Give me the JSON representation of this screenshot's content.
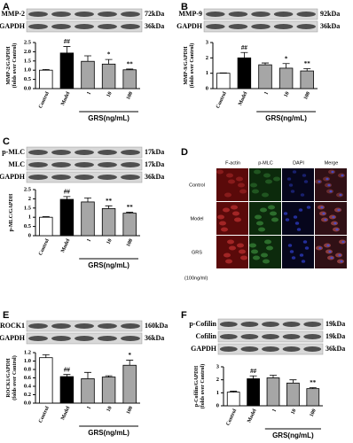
{
  "chart_data": [
    {
      "type": "bar",
      "panel": "A",
      "blot": [
        {
          "protein": "MMP-2",
          "size": "72kDa"
        },
        {
          "protein": "GAPDH",
          "size": "36kDa"
        }
      ],
      "y_label": [
        "MMP-2/GAPDH",
        "(folds over Control)"
      ],
      "categories": [
        "Control",
        "Model",
        "1",
        "10",
        "100"
      ],
      "group_label": "GRS(ng/mL)",
      "values": [
        1.0,
        1.93,
        1.48,
        1.33,
        1.02
      ],
      "errors": [
        0.04,
        0.35,
        0.3,
        0.25,
        0.04
      ],
      "significance": [
        null,
        "##",
        null,
        "*",
        "**"
      ],
      "colors": [
        "#ffffff",
        "#000000",
        "#a6a6a6",
        "#a6a6a6",
        "#a6a6a6"
      ],
      "ylim": [
        0,
        2.5
      ],
      "yticks": [
        {
          "value": 0,
          "label": "0.0"
        },
        0.5,
        {
          "value": 1,
          "label": "1.0"
        },
        1.5,
        {
          "value": 2,
          "label": "2.0"
        },
        2.5
      ]
    },
    {
      "type": "bar",
      "panel": "B",
      "blot": [
        {
          "protein": "MMP-9",
          "size": "92kDa"
        },
        {
          "protein": "GAPDH",
          "size": "36kDa"
        }
      ],
      "y_label": [
        "MMP-9/GAPDH",
        "(folds over Control)"
      ],
      "categories": [
        "Control",
        "Model",
        "1",
        "10",
        "100"
      ],
      "group_label": "GRS(ng/mL)",
      "values": [
        1.0,
        2.0,
        1.55,
        1.33,
        1.15
      ],
      "errors": [
        0.02,
        0.35,
        0.12,
        0.3,
        0.15
      ],
      "significance": [
        null,
        "##",
        null,
        "*",
        "**"
      ],
      "colors": [
        "#ffffff",
        "#000000",
        "#a6a6a6",
        "#a6a6a6",
        "#a6a6a6"
      ],
      "ylim": [
        0,
        3
      ],
      "yticks": [
        0,
        1,
        2,
        3
      ]
    },
    {
      "type": "bar",
      "panel": "C",
      "blot": [
        {
          "protein": "p-MLC",
          "size": "17kDa"
        },
        {
          "protein": "MLC",
          "size": "17kDa"
        },
        {
          "protein": "GAPDH",
          "size": "36kDa"
        }
      ],
      "y_label": [
        "p-MLC/GAPDH"
      ],
      "categories": [
        "Control",
        "Model",
        "1",
        "10",
        "100"
      ],
      "group_label": "GRS(ng/mL)",
      "values": [
        1.0,
        1.97,
        1.83,
        1.47,
        1.22
      ],
      "errors": [
        0.03,
        0.15,
        0.22,
        0.15,
        0.05
      ],
      "significance": [
        null,
        "##",
        null,
        "**",
        "**"
      ],
      "colors": [
        "#ffffff",
        "#000000",
        "#a6a6a6",
        "#a6a6a6",
        "#a6a6a6"
      ],
      "ylim": [
        0,
        2.5
      ],
      "yticks": [
        0,
        0.5,
        1,
        1.5,
        2,
        2.5
      ]
    },
    {
      "type": "bar",
      "panel": "E",
      "blot": [
        {
          "protein": "ROCK1",
          "size": "160kDa"
        },
        {
          "protein": "GAPDH",
          "size": "36kDa"
        }
      ],
      "y_label": [
        "ROCK1/GAPDH",
        "(folds over Control)"
      ],
      "categories": [
        "Control",
        "Model",
        "1",
        "10",
        "100"
      ],
      "group_label": "GRS(ng/mL)",
      "values": [
        1.08,
        0.63,
        0.58,
        0.62,
        0.9
      ],
      "errors": [
        0.07,
        0.05,
        0.15,
        0.03,
        0.12
      ],
      "significance": [
        null,
        "##",
        null,
        null,
        "*"
      ],
      "colors": [
        "#ffffff",
        "#000000",
        "#a6a6a6",
        "#a6a6a6",
        "#a6a6a6"
      ],
      "ylim": [
        0,
        1.2
      ],
      "yticks": [
        {
          "value": 0,
          "label": "0.0"
        },
        0.2,
        0.4,
        0.6,
        0.8,
        {
          "value": 1,
          "label": "1.0"
        },
        1.2
      ]
    },
    {
      "type": "bar",
      "panel": "F",
      "blot": [
        {
          "protein": "p-Cofilin",
          "size": "19kDa"
        },
        {
          "protein": "Cofilin",
          "size": "19kDa"
        },
        {
          "protein": "GAPDH",
          "size": "36kDa"
        }
      ],
      "y_label": [
        "p-Cofilin/GAPDH",
        "(folds over Control)"
      ],
      "categories": [
        "Control",
        "Model",
        "1",
        "10",
        "100"
      ],
      "group_label": "GRS(ng/mL)",
      "values": [
        1.05,
        2.08,
        2.15,
        1.75,
        1.32
      ],
      "errors": [
        0.08,
        0.22,
        0.2,
        0.25,
        0.08
      ],
      "significance": [
        null,
        "##",
        null,
        null,
        "**"
      ],
      "colors": [
        "#ffffff",
        "#000000",
        "#a6a6a6",
        "#a6a6a6",
        "#a6a6a6"
      ],
      "ylim": [
        0,
        3
      ],
      "yticks": [
        0,
        1,
        2,
        3
      ]
    }
  ],
  "figure_d": {
    "panel": "D",
    "columns": [
      "F-actin",
      "p-MLC",
      "DAPI",
      "Merge"
    ],
    "rows": [
      "Control",
      "Model",
      "GRS"
    ],
    "note": "(100ng/ml)"
  }
}
